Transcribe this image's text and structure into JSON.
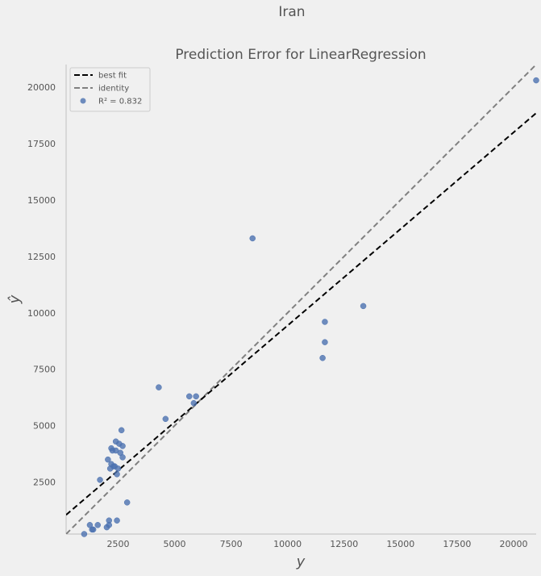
{
  "figure": {
    "suptitle": "Iran"
  },
  "chart_data": {
    "type": "scatter",
    "title": "Prediction Error for LinearRegression",
    "xlabel": "y",
    "ylabel": "ŷ",
    "xlim": [
      200,
      21000
    ],
    "ylim": [
      200,
      21000
    ],
    "xticks": [
      2500,
      5000,
      7500,
      10000,
      12500,
      15000,
      17500,
      20000
    ],
    "yticks": [
      2500,
      5000,
      7500,
      10000,
      12500,
      15000,
      17500,
      20000
    ],
    "grid": false,
    "legend_position": "top-left",
    "legend": [
      {
        "label": "best fit",
        "style": "dashed",
        "color": "#000000"
      },
      {
        "label": "identity",
        "style": "dashed",
        "color": "#808080"
      },
      {
        "label": "R² = 0.832",
        "style": "marker",
        "color": "#4c72b0"
      }
    ],
    "best_fit_line": {
      "x": [
        200,
        21000
      ],
      "y": [
        1050,
        18850
      ]
    },
    "identity_line": {
      "x": [
        200,
        21000
      ],
      "y": [
        200,
        21000
      ]
    },
    "series": [
      {
        "name": "R² = 0.832",
        "color": "#4c72b0",
        "points": [
          [
            1000,
            200
          ],
          [
            1250,
            600
          ],
          [
            1350,
            400
          ],
          [
            1400,
            400
          ],
          [
            1600,
            600
          ],
          [
            1700,
            2600
          ],
          [
            2000,
            500
          ],
          [
            2050,
            3500
          ],
          [
            2100,
            800
          ],
          [
            2100,
            600
          ],
          [
            2150,
            3100
          ],
          [
            2200,
            3300
          ],
          [
            2200,
            4000
          ],
          [
            2250,
            3900
          ],
          [
            2300,
            3200
          ],
          [
            2350,
            3200
          ],
          [
            2400,
            4300
          ],
          [
            2400,
            3900
          ],
          [
            2450,
            800
          ],
          [
            2450,
            2850
          ],
          [
            2500,
            3100
          ],
          [
            2550,
            4200
          ],
          [
            2600,
            3800
          ],
          [
            2650,
            4800
          ],
          [
            2700,
            4100
          ],
          [
            2700,
            3600
          ],
          [
            2900,
            1600
          ],
          [
            4300,
            6700
          ],
          [
            4600,
            5300
          ],
          [
            5650,
            6300
          ],
          [
            5850,
            6000
          ],
          [
            5950,
            6300
          ],
          [
            8450,
            13300
          ],
          [
            11550,
            8000
          ],
          [
            11650,
            9600
          ],
          [
            11650,
            8700
          ],
          [
            13350,
            10300
          ],
          [
            21000,
            20300
          ]
        ]
      }
    ]
  }
}
